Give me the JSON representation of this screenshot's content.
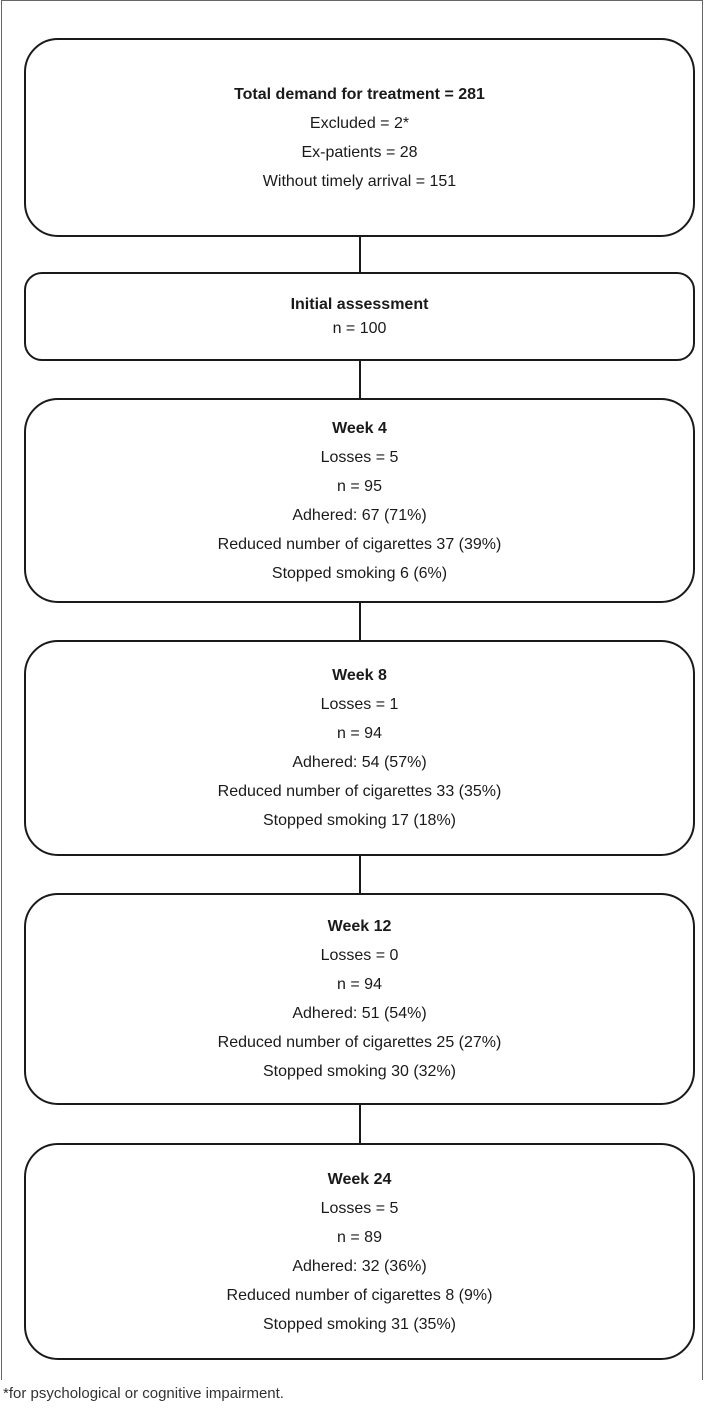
{
  "boxes": [
    {
      "title": "Total demand for treatment = 281",
      "lines": [
        "Excluded = 2*",
        "Ex-patients = 28",
        "Without timely arrival = 151"
      ]
    },
    {
      "title": "Initial assessment",
      "lines": [
        "n = 100"
      ]
    },
    {
      "title": "Week 4",
      "lines": [
        "Losses = 5",
        "n = 95",
        "Adhered: 67 (71%)",
        "Reduced number of cigarettes 37 (39%)",
        "Stopped smoking 6 (6%)"
      ]
    },
    {
      "title": "Week 8",
      "lines": [
        "Losses = 1",
        "n = 94",
        "Adhered: 54 (57%)",
        "Reduced number of cigarettes 33 (35%)",
        "Stopped smoking 17 (18%)"
      ]
    },
    {
      "title": "Week 12",
      "lines": [
        "Losses = 0",
        "n = 94",
        "Adhered: 51 (54%)",
        "Reduced number of cigarettes 25 (27%)",
        "Stopped smoking 30 (32%)"
      ]
    },
    {
      "title": "Week 24",
      "lines": [
        "Losses = 5",
        "n = 89",
        "Adhered: 32 (36%)",
        "Reduced number of cigarettes 8 (9%)",
        "Stopped smoking 31 (35%)"
      ]
    }
  ],
  "footnote": "*for psychological or cognitive impairment."
}
